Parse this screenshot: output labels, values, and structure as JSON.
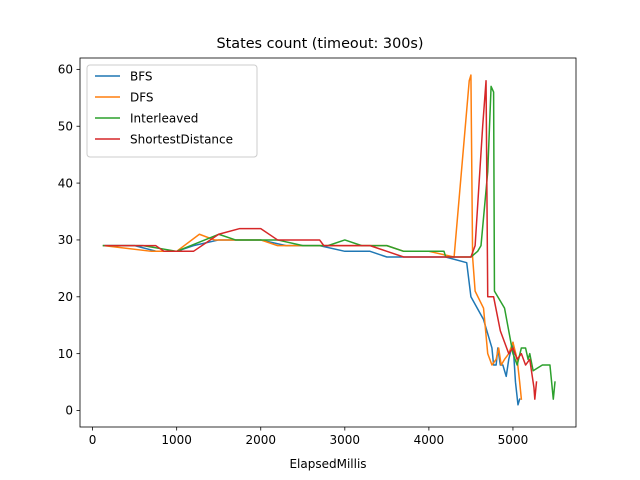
{
  "chart_data": {
    "type": "line",
    "title": "States count (timeout: 300s)",
    "xlabel": "ElapsedMillis",
    "ylabel": "",
    "xlim": [
      -150,
      5750
    ],
    "ylim": [
      -2.9,
      62
    ],
    "xticks": [
      0,
      1000,
      2000,
      3000,
      4000,
      5000
    ],
    "yticks": [
      0,
      10,
      20,
      30,
      40,
      50,
      60
    ],
    "grid": false,
    "legend_position": "top-left",
    "series": [
      {
        "name": "BFS",
        "color": "#1f77b4",
        "points": [
          [
            130,
            29
          ],
          [
            500,
            29
          ],
          [
            760,
            28
          ],
          [
            1000,
            28
          ],
          [
            1200,
            29
          ],
          [
            1500,
            30
          ],
          [
            2000,
            30
          ],
          [
            2300,
            29
          ],
          [
            2700,
            29
          ],
          [
            3000,
            28
          ],
          [
            3300,
            28
          ],
          [
            3500,
            27
          ],
          [
            4200,
            27
          ],
          [
            4450,
            26
          ],
          [
            4500,
            20
          ],
          [
            4650,
            16
          ],
          [
            4750,
            11
          ],
          [
            4770,
            8
          ],
          [
            4800,
            8
          ],
          [
            4820,
            11
          ],
          [
            4850,
            8
          ],
          [
            4880,
            8
          ],
          [
            4920,
            6
          ],
          [
            4950,
            9
          ],
          [
            5000,
            12
          ],
          [
            5030,
            5
          ],
          [
            5060,
            1
          ],
          [
            5080,
            2
          ]
        ]
      },
      {
        "name": "DFS",
        "color": "#ff7f0e",
        "points": [
          [
            130,
            29
          ],
          [
            700,
            28
          ],
          [
            1000,
            28
          ],
          [
            1270,
            31
          ],
          [
            1450,
            30
          ],
          [
            2000,
            30
          ],
          [
            2200,
            29
          ],
          [
            2500,
            29
          ],
          [
            3000,
            29
          ],
          [
            3500,
            29
          ],
          [
            3700,
            28
          ],
          [
            4000,
            28
          ],
          [
            4300,
            27
          ],
          [
            4480,
            58
          ],
          [
            4500,
            59
          ],
          [
            4520,
            27
          ],
          [
            4550,
            21
          ],
          [
            4650,
            18
          ],
          [
            4700,
            10
          ],
          [
            4750,
            8
          ],
          [
            4800,
            9
          ],
          [
            4830,
            11
          ],
          [
            4860,
            8
          ],
          [
            4900,
            9
          ],
          [
            4950,
            10
          ],
          [
            5000,
            12
          ],
          [
            5050,
            9
          ],
          [
            5080,
            5
          ],
          [
            5100,
            2
          ]
        ]
      },
      {
        "name": "Interleaved",
        "color": "#2ca02c",
        "points": [
          [
            130,
            29
          ],
          [
            600,
            29
          ],
          [
            1000,
            28
          ],
          [
            1500,
            31
          ],
          [
            1700,
            30
          ],
          [
            2000,
            30
          ],
          [
            2200,
            30
          ],
          [
            2500,
            29
          ],
          [
            2800,
            29
          ],
          [
            3000,
            30
          ],
          [
            3200,
            29
          ],
          [
            3500,
            29
          ],
          [
            3700,
            28
          ],
          [
            4180,
            28
          ],
          [
            4200,
            27
          ],
          [
            4500,
            27
          ],
          [
            4580,
            28
          ],
          [
            4620,
            29
          ],
          [
            4700,
            42
          ],
          [
            4740,
            57
          ],
          [
            4770,
            56
          ],
          [
            4780,
            21
          ],
          [
            4900,
            18
          ],
          [
            4950,
            14
          ],
          [
            5000,
            10
          ],
          [
            5050,
            8
          ],
          [
            5100,
            11
          ],
          [
            5150,
            11
          ],
          [
            5180,
            9
          ],
          [
            5200,
            10
          ],
          [
            5240,
            7
          ],
          [
            5350,
            8
          ],
          [
            5440,
            8
          ],
          [
            5480,
            2
          ],
          [
            5500,
            5
          ]
        ]
      },
      {
        "name": "ShortestDistance",
        "color": "#d62728",
        "points": [
          [
            150,
            29
          ],
          [
            500,
            29
          ],
          [
            750,
            29
          ],
          [
            850,
            28
          ],
          [
            1000,
            28
          ],
          [
            1200,
            28
          ],
          [
            1500,
            31
          ],
          [
            1750,
            32
          ],
          [
            2000,
            32
          ],
          [
            2200,
            30
          ],
          [
            2500,
            30
          ],
          [
            2700,
            30
          ],
          [
            2750,
            29
          ],
          [
            3300,
            29
          ],
          [
            3500,
            28
          ],
          [
            3700,
            27
          ],
          [
            4000,
            27
          ],
          [
            4500,
            27
          ],
          [
            4550,
            29
          ],
          [
            4640,
            50
          ],
          [
            4680,
            58
          ],
          [
            4700,
            20
          ],
          [
            4770,
            20
          ],
          [
            4850,
            14
          ],
          [
            4950,
            10
          ],
          [
            5000,
            11
          ],
          [
            5050,
            9
          ],
          [
            5100,
            10
          ],
          [
            5150,
            8
          ],
          [
            5200,
            9
          ],
          [
            5250,
            4
          ],
          [
            5260,
            2
          ],
          [
            5280,
            5
          ]
        ]
      }
    ]
  }
}
